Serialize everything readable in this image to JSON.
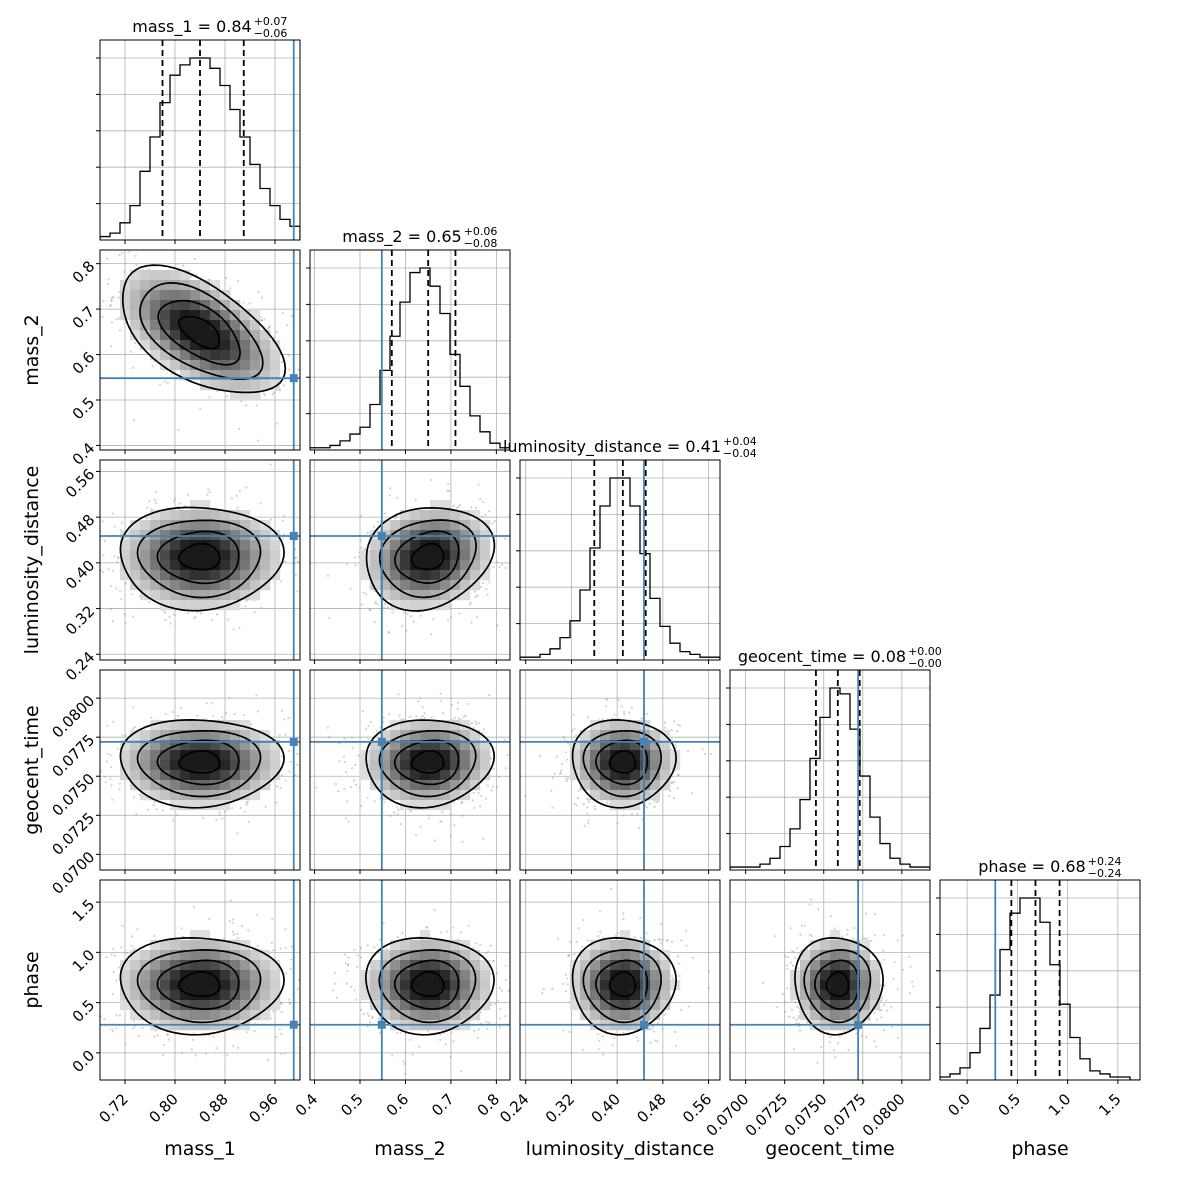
{
  "chart_data": {
    "type": "corner",
    "parameters": [
      "mass_1",
      "mass_2",
      "luminosity_distance",
      "geocent_time",
      "phase"
    ],
    "axis_labels": [
      "mass_1",
      "mass_2",
      "luminosity_distance",
      "geocent_time",
      "phase"
    ],
    "ranges": [
      [
        0.68,
        1.0
      ],
      [
        0.39,
        0.83
      ],
      [
        0.23,
        0.58
      ],
      [
        0.069,
        0.0818
      ],
      [
        -0.27,
        1.72
      ]
    ],
    "ticks": [
      [
        0.72,
        0.8,
        0.88,
        0.96
      ],
      [
        0.4,
        0.5,
        0.6,
        0.7,
        0.8
      ],
      [
        0.24,
        0.32,
        0.4,
        0.48,
        0.56
      ],
      [
        0.07,
        0.0725,
        0.075,
        0.0775,
        0.08
      ],
      [
        0.0,
        0.5,
        1.0,
        1.5
      ]
    ],
    "tick_labels": [
      [
        "0.72",
        "0.80",
        "0.88",
        "0.96"
      ],
      [
        "0.4",
        "0.5",
        "0.6",
        "0.7",
        "0.8"
      ],
      [
        "0.24",
        "0.32",
        "0.40",
        "0.48",
        "0.56"
      ],
      [
        "0.0700",
        "0.0725",
        "0.0750",
        "0.0775",
        "0.0800"
      ],
      [
        "0.0",
        "0.5",
        "1.0",
        "1.5"
      ]
    ],
    "truths": [
      0.99,
      0.548,
      0.447,
      0.0772,
      0.28
    ],
    "medians": [
      0.84,
      0.65,
      0.41,
      0.0759,
      0.68
    ],
    "quantiles_16_84": [
      [
        0.78,
        0.91
      ],
      [
        0.57,
        0.71
      ],
      [
        0.36,
        0.45
      ],
      [
        0.0745,
        0.0773
      ],
      [
        0.44,
        0.92
      ]
    ],
    "titles": [
      {
        "main": "mass_1 = 0.84",
        "sup": "+0.07",
        "sub": "−0.06"
      },
      {
        "main": "mass_2 = 0.65",
        "sup": "+0.06",
        "sub": "−0.08"
      },
      {
        "main": "luminosity_distance = 0.41",
        "sup": "+0.04",
        "sub": "−0.04"
      },
      {
        "main": "geocent_time = 0.08",
        "sup": "+0.00",
        "sub": "−0.00"
      },
      {
        "main": "phase = 0.68",
        "sup": "+0.24",
        "sub": "−0.24"
      }
    ],
    "histograms": [
      {
        "param": "mass_1",
        "bins": 20,
        "counts": [
          1,
          2,
          5,
          10,
          20,
          30,
          40,
          48,
          51,
          53,
          53,
          50,
          45,
          38,
          30,
          22,
          15,
          10,
          6,
          4
        ],
        "bin_range": [
          0.68,
          1.0
        ]
      },
      {
        "param": "mass_2",
        "bins": 20,
        "counts": [
          1,
          1,
          2,
          4,
          7,
          10,
          20,
          35,
          50,
          65,
          78,
          80,
          72,
          60,
          42,
          28,
          15,
          8,
          3,
          1
        ],
        "bin_range": [
          0.39,
          0.83
        ]
      },
      {
        "param": "luminosity_distance",
        "bins": 20,
        "counts": [
          1,
          1,
          2,
          4,
          8,
          14,
          25,
          40,
          55,
          65,
          65,
          55,
          38,
          22,
          12,
          6,
          3,
          2,
          1,
          1
        ],
        "bin_range": [
          0.23,
          0.58
        ]
      },
      {
        "param": "geocent_time",
        "bins": 20,
        "counts": [
          1,
          1,
          1,
          2,
          4,
          8,
          14,
          24,
          38,
          52,
          62,
          60,
          48,
          32,
          18,
          9,
          4,
          2,
          1,
          1
        ],
        "bin_range": [
          0.069,
          0.0818
        ]
      },
      {
        "param": "phase",
        "bins": 20,
        "counts": [
          1,
          2,
          4,
          9,
          17,
          28,
          43,
          55,
          60,
          60,
          52,
          38,
          25,
          14,
          7,
          3,
          2,
          1,
          1,
          0
        ],
        "bin_range": [
          -0.27,
          1.72
        ]
      }
    ],
    "posterior_2d": [
      {
        "x": "mass_1",
        "y": "mass_2",
        "mean": [
          0.84,
          0.65
        ],
        "sigma": [
          0.065,
          0.07
        ],
        "corr": -0.55
      },
      {
        "x": "mass_1",
        "y": "luminosity_distance",
        "mean": [
          0.84,
          0.41
        ],
        "sigma": [
          0.065,
          0.045
        ],
        "corr": 0.0
      },
      {
        "x": "mass_2",
        "y": "luminosity_distance",
        "mean": [
          0.65,
          0.41
        ],
        "sigma": [
          0.07,
          0.045
        ],
        "corr": 0.15
      },
      {
        "x": "mass_1",
        "y": "geocent_time",
        "mean": [
          0.84,
          0.0759
        ],
        "sigma": [
          0.065,
          0.0014
        ],
        "corr": 0.0
      },
      {
        "x": "mass_2",
        "y": "geocent_time",
        "mean": [
          0.65,
          0.0759
        ],
        "sigma": [
          0.07,
          0.0014
        ],
        "corr": 0.05
      },
      {
        "x": "luminosity_distance",
        "y": "geocent_time",
        "mean": [
          0.41,
          0.0759
        ],
        "sigma": [
          0.045,
          0.0014
        ],
        "corr": 0.0
      },
      {
        "x": "mass_1",
        "y": "phase",
        "mean": [
          0.84,
          0.68
        ],
        "sigma": [
          0.065,
          0.24
        ],
        "corr": 0.0
      },
      {
        "x": "mass_2",
        "y": "phase",
        "mean": [
          0.65,
          0.68
        ],
        "sigma": [
          0.07,
          0.24
        ],
        "corr": 0.0
      },
      {
        "x": "luminosity_distance",
        "y": "phase",
        "mean": [
          0.41,
          0.68
        ],
        "sigma": [
          0.045,
          0.24
        ],
        "corr": 0.0
      },
      {
        "x": "geocent_time",
        "y": "phase",
        "mean": [
          0.0759,
          0.68
        ],
        "sigma": [
          0.0014,
          0.24
        ],
        "corr": 0.0
      }
    ],
    "contour_levels_sigma": [
      0.5,
      1.0,
      1.5,
      2.0
    ],
    "grid": true,
    "colors": {
      "truth": "#4682b4",
      "hist": "#000000",
      "quantile": "#000000",
      "grid": "#b0b0b0",
      "points": "#999999"
    }
  }
}
